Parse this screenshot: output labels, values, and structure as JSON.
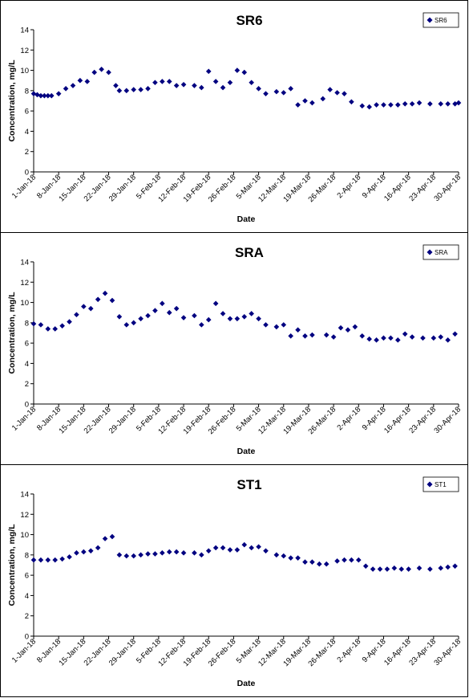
{
  "chart_data": [
    {
      "type": "scatter",
      "title": "SR6",
      "xlabel": "Date",
      "ylabel": "Concentration, mg/L",
      "ylim": [
        0,
        14
      ],
      "yticks": [
        0,
        2,
        4,
        6,
        8,
        10,
        12,
        14
      ],
      "xlim": [
        "2018-01-01",
        "2018-04-30"
      ],
      "xticks": [
        "1-Jan-18",
        "8-Jan-18",
        "15-Jan-18",
        "22-Jan-18",
        "29-Jan-18",
        "5-Feb-18",
        "12-Feb-18",
        "19-Feb-18",
        "26-Feb-18",
        "5-Mar-18",
        "12-Mar-18",
        "19-Mar-18",
        "26-Mar-18",
        "2-Apr-18",
        "9-Apr-18",
        "16-Apr-18",
        "23-Apr-18",
        "30-Apr-18"
      ],
      "grid": false,
      "legend": "top-right",
      "marker": "diamond",
      "color": "#000080",
      "series": [
        {
          "name": "SR6",
          "x": [
            "2018-01-01",
            "2018-01-02",
            "2018-01-03",
            "2018-01-04",
            "2018-01-05",
            "2018-01-06",
            "2018-01-08",
            "2018-01-10",
            "2018-01-12",
            "2018-01-14",
            "2018-01-16",
            "2018-01-18",
            "2018-01-20",
            "2018-01-22",
            "2018-01-24",
            "2018-01-25",
            "2018-01-27",
            "2018-01-29",
            "2018-01-31",
            "2018-02-02",
            "2018-02-04",
            "2018-02-06",
            "2018-02-08",
            "2018-02-10",
            "2018-02-12",
            "2018-02-15",
            "2018-02-17",
            "2018-02-19",
            "2018-02-21",
            "2018-02-23",
            "2018-02-25",
            "2018-02-27",
            "2018-03-01",
            "2018-03-03",
            "2018-03-05",
            "2018-03-07",
            "2018-03-10",
            "2018-03-12",
            "2018-03-14",
            "2018-03-16",
            "2018-03-18",
            "2018-03-20",
            "2018-03-23",
            "2018-03-25",
            "2018-03-27",
            "2018-03-29",
            "2018-03-31",
            "2018-04-03",
            "2018-04-05",
            "2018-04-07",
            "2018-04-09",
            "2018-04-11",
            "2018-04-13",
            "2018-04-15",
            "2018-04-17",
            "2018-04-19",
            "2018-04-22",
            "2018-04-25",
            "2018-04-27",
            "2018-04-29",
            "2018-04-30"
          ],
          "y": [
            7.7,
            7.6,
            7.5,
            7.5,
            7.5,
            7.5,
            7.7,
            8.2,
            8.5,
            9.0,
            8.9,
            9.8,
            10.1,
            9.8,
            8.5,
            8.0,
            8.0,
            8.1,
            8.1,
            8.2,
            8.8,
            8.9,
            8.9,
            8.5,
            8.6,
            8.5,
            8.3,
            9.9,
            8.9,
            8.3,
            8.8,
            10.0,
            9.8,
            8.8,
            8.2,
            7.7,
            7.9,
            7.8,
            8.2,
            6.6,
            7.0,
            6.8,
            7.2,
            8.1,
            7.8,
            7.7,
            6.9,
            6.5,
            6.4,
            6.6,
            6.6,
            6.6,
            6.6,
            6.7,
            6.7,
            6.8,
            6.7,
            6.7,
            6.7,
            6.7,
            6.8
          ]
        }
      ]
    },
    {
      "type": "scatter",
      "title": "SRA",
      "xlabel": "Date",
      "ylabel": "Concentration, mg/L",
      "ylim": [
        0,
        14
      ],
      "yticks": [
        0,
        2,
        4,
        6,
        8,
        10,
        12,
        14
      ],
      "xlim": [
        "2018-01-01",
        "2018-04-30"
      ],
      "xticks": [
        "1-Jan-18",
        "8-Jan-18",
        "15-Jan-18",
        "22-Jan-18",
        "29-Jan-18",
        "5-Feb-18",
        "12-Feb-18",
        "19-Feb-18",
        "26-Feb-18",
        "5-Mar-18",
        "12-Mar-18",
        "19-Mar-18",
        "26-Mar-18",
        "2-Apr-18",
        "9-Apr-18",
        "16-Apr-18",
        "23-Apr-18",
        "30-Apr-18"
      ],
      "grid": false,
      "legend": "top-right",
      "marker": "diamond",
      "color": "#000080",
      "series": [
        {
          "name": "SRA",
          "x": [
            "2018-01-01",
            "2018-01-03",
            "2018-01-05",
            "2018-01-07",
            "2018-01-09",
            "2018-01-11",
            "2018-01-13",
            "2018-01-15",
            "2018-01-17",
            "2018-01-19",
            "2018-01-21",
            "2018-01-23",
            "2018-01-25",
            "2018-01-27",
            "2018-01-29",
            "2018-01-31",
            "2018-02-02",
            "2018-02-04",
            "2018-02-06",
            "2018-02-08",
            "2018-02-10",
            "2018-02-12",
            "2018-02-15",
            "2018-02-17",
            "2018-02-19",
            "2018-02-21",
            "2018-02-23",
            "2018-02-25",
            "2018-02-27",
            "2018-03-01",
            "2018-03-03",
            "2018-03-05",
            "2018-03-07",
            "2018-03-10",
            "2018-03-12",
            "2018-03-14",
            "2018-03-16",
            "2018-03-18",
            "2018-03-20",
            "2018-03-24",
            "2018-03-26",
            "2018-03-28",
            "2018-03-30",
            "2018-04-01",
            "2018-04-03",
            "2018-04-05",
            "2018-04-07",
            "2018-04-09",
            "2018-04-11",
            "2018-04-13",
            "2018-04-15",
            "2018-04-17",
            "2018-04-20",
            "2018-04-23",
            "2018-04-25",
            "2018-04-27",
            "2018-04-29"
          ],
          "y": [
            7.9,
            7.8,
            7.4,
            7.4,
            7.7,
            8.1,
            8.8,
            9.6,
            9.4,
            10.3,
            10.9,
            10.2,
            8.6,
            7.8,
            8.0,
            8.4,
            8.7,
            9.2,
            9.9,
            9.0,
            9.4,
            8.5,
            8.7,
            7.8,
            8.3,
            9.9,
            8.9,
            8.4,
            8.4,
            8.6,
            8.9,
            8.4,
            7.8,
            7.6,
            7.8,
            6.7,
            7.3,
            6.7,
            6.8,
            6.8,
            6.6,
            7.5,
            7.3,
            7.6,
            6.7,
            6.4,
            6.3,
            6.5,
            6.5,
            6.3,
            6.9,
            6.6,
            6.5,
            6.5,
            6.6,
            6.3,
            6.9
          ]
        }
      ]
    },
    {
      "type": "scatter",
      "title": "ST1",
      "xlabel": "Date",
      "ylabel": "Concentration, mg/L",
      "ylim": [
        0,
        14
      ],
      "yticks": [
        0,
        2,
        4,
        6,
        8,
        10,
        12,
        14
      ],
      "xlim": [
        "2018-01-01",
        "2018-04-30"
      ],
      "xticks": [
        "1-Jan-18",
        "8-Jan-18",
        "15-Jan-18",
        "22-Jan-18",
        "29-Jan-18",
        "5-Feb-18",
        "12-Feb-18",
        "19-Feb-18",
        "26-Feb-18",
        "5-Mar-18",
        "12-Mar-18",
        "19-Mar-18",
        "26-Mar-18",
        "2-Apr-18",
        "9-Apr-18",
        "16-Apr-18",
        "23-Apr-18",
        "30-Apr-18"
      ],
      "grid": false,
      "legend": "top-right",
      "marker": "diamond",
      "color": "#000080",
      "series": [
        {
          "name": "ST1",
          "x": [
            "2018-01-01",
            "2018-01-03",
            "2018-01-05",
            "2018-01-07",
            "2018-01-09",
            "2018-01-11",
            "2018-01-13",
            "2018-01-15",
            "2018-01-17",
            "2018-01-19",
            "2018-01-21",
            "2018-01-23",
            "2018-01-25",
            "2018-01-27",
            "2018-01-29",
            "2018-01-31",
            "2018-02-02",
            "2018-02-04",
            "2018-02-06",
            "2018-02-08",
            "2018-02-10",
            "2018-02-12",
            "2018-02-15",
            "2018-02-17",
            "2018-02-19",
            "2018-02-21",
            "2018-02-23",
            "2018-02-25",
            "2018-02-27",
            "2018-03-01",
            "2018-03-03",
            "2018-03-05",
            "2018-03-07",
            "2018-03-10",
            "2018-03-12",
            "2018-03-14",
            "2018-03-16",
            "2018-03-18",
            "2018-03-20",
            "2018-03-22",
            "2018-03-24",
            "2018-03-27",
            "2018-03-29",
            "2018-03-31",
            "2018-04-02",
            "2018-04-04",
            "2018-04-06",
            "2018-04-08",
            "2018-04-10",
            "2018-04-12",
            "2018-04-14",
            "2018-04-16",
            "2018-04-19",
            "2018-04-22",
            "2018-04-25",
            "2018-04-27",
            "2018-04-29"
          ],
          "y": [
            7.5,
            7.5,
            7.5,
            7.5,
            7.6,
            7.8,
            8.2,
            8.3,
            8.4,
            8.7,
            9.6,
            9.8,
            8.0,
            7.9,
            7.9,
            8.0,
            8.1,
            8.1,
            8.2,
            8.3,
            8.3,
            8.2,
            8.2,
            8.0,
            8.4,
            8.7,
            8.7,
            8.5,
            8.5,
            9.0,
            8.7,
            8.8,
            8.4,
            8.0,
            7.9,
            7.7,
            7.7,
            7.3,
            7.3,
            7.1,
            7.1,
            7.4,
            7.5,
            7.5,
            7.5,
            6.9,
            6.6,
            6.6,
            6.6,
            6.7,
            6.6,
            6.6,
            6.7,
            6.6,
            6.7,
            6.8,
            6.9
          ]
        }
      ]
    }
  ]
}
